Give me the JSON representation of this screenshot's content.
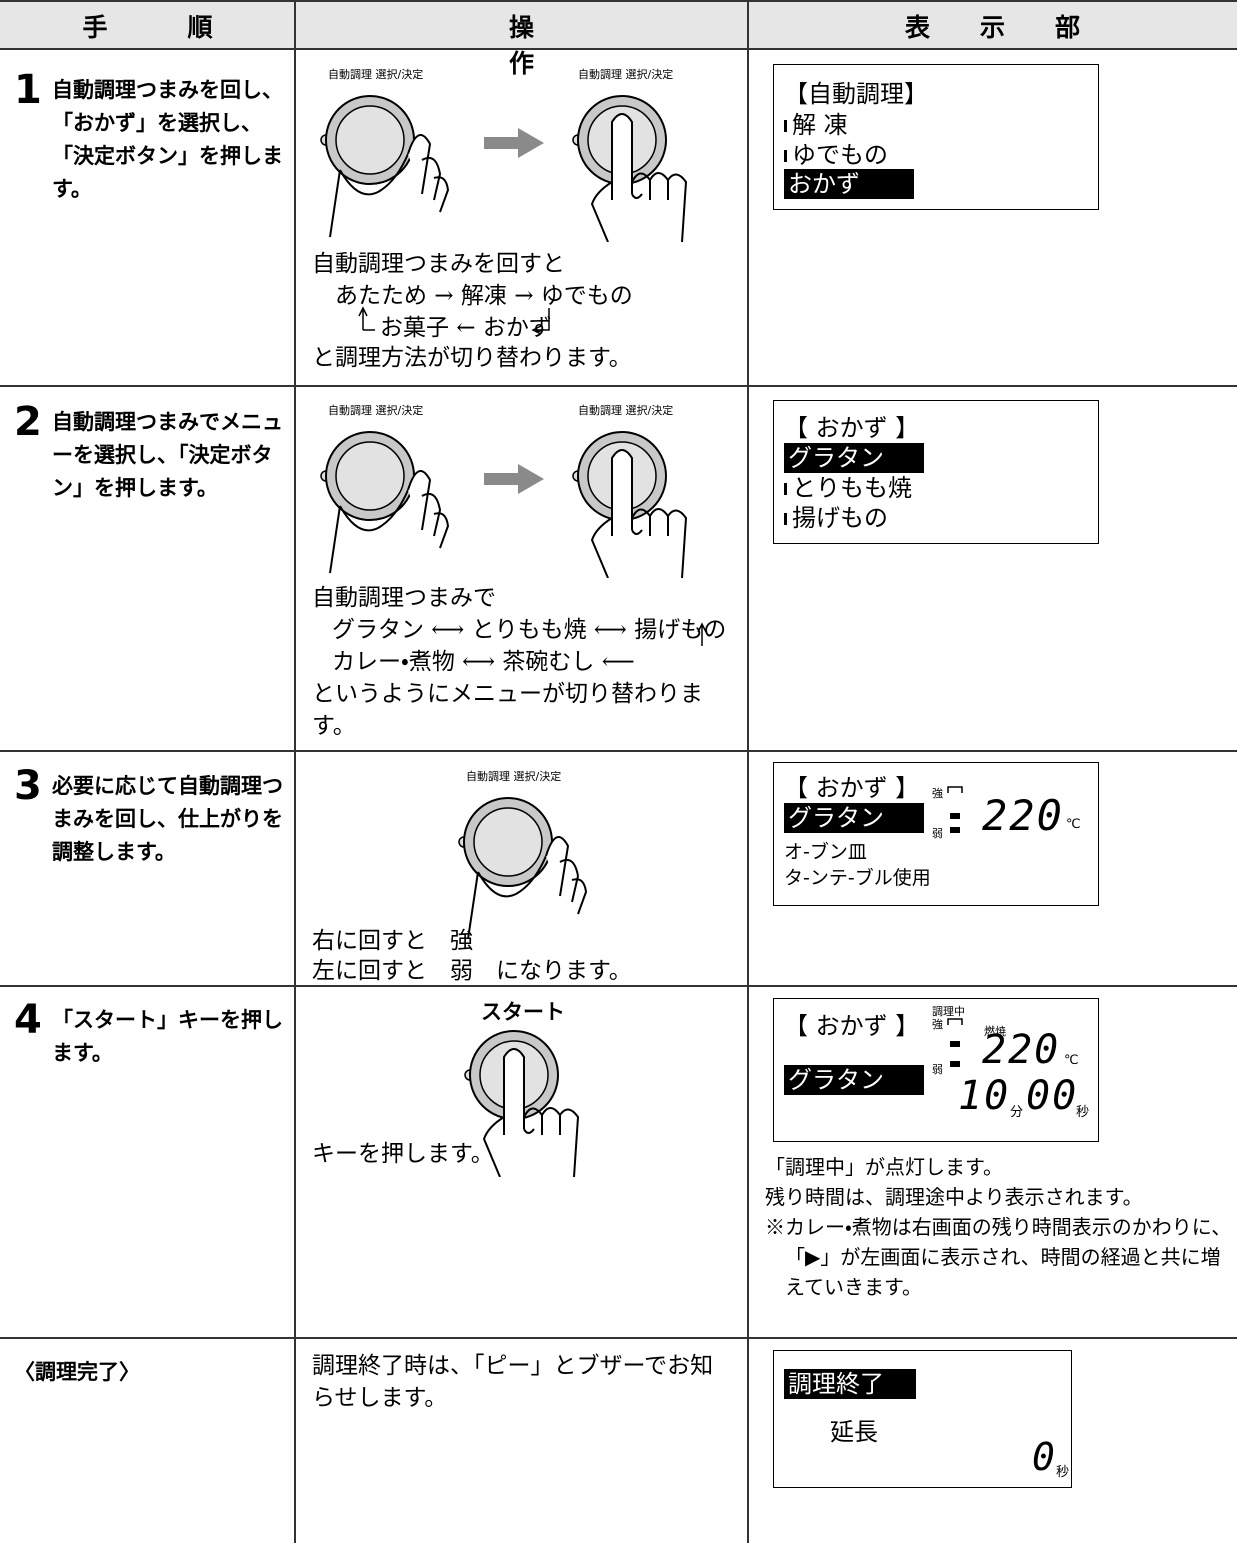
{
  "header": {
    "columns": [
      "手順",
      "操作",
      "表示部"
    ]
  },
  "steps": [
    {
      "number": "1",
      "instruction": "自動調理つまみを回し、「おかず」を選択し、「決定ボタン」を押します。",
      "operation": {
        "dial_labels": [
          "自動調理 選択/決定",
          "自動調理 選択/決定"
        ],
        "caption": [
          "自動調理つまみを回すと",
          "あたため → 解凍 → ゆでもの",
          "お菓子 ← おかず",
          "と調理方法が切り替わります。"
        ]
      },
      "display": {
        "lines": [
          "【自動調理】",
          "解 凍",
          "ゆでもの",
          "おかず"
        ]
      }
    },
    {
      "number": "2",
      "instruction": "自動調理つまみでメニューを選択し、「決定ボタン」を押します。",
      "operation": {
        "dial_labels": [
          "自動調理 選択/決定",
          "自動調理 選択/決定"
        ],
        "caption": [
          "自動調理つまみで",
          "グラタン ⟷ とりもも焼 ⟷ 揚げもの",
          "カレー・煮物 ⟷ 茶碗むし ⟵",
          "というようにメニューが切り替わります。"
        ]
      },
      "display": {
        "lines": [
          "【 おかず 】",
          "グラタン",
          "とりもも焼",
          "揚げもの"
        ]
      }
    },
    {
      "number": "3",
      "instruction": "必要に応じて自動調理つまみを回し、仕上がりを調整します。",
      "operation": {
        "dial_labels": [
          "自動調理 選択/決定"
        ],
        "caption": [
          "右に回すと　強",
          "左に回すと　弱　になります。"
        ]
      },
      "display": {
        "lines": [
          "【 おかず 】",
          "グラタン",
          "オ-ブン皿",
          "タ-ンテ-ブル使用"
        ],
        "indicators": [
          "強",
          "弱"
        ],
        "temperature": "220",
        "temperature_unit": "℃"
      }
    },
    {
      "number": "4",
      "instruction": "「スタート」キーを押します。",
      "operation": {
        "key_label": "スタート",
        "caption": [
          "キーを押します。"
        ]
      },
      "display": {
        "lines": [
          "【 おかず 】",
          "グラタン"
        ],
        "indicators": [
          "調理中",
          "強",
          "燃焼",
          "弱"
        ],
        "temperature": "220",
        "temperature_unit": "℃",
        "minutes": "10",
        "minutes_unit": "分",
        "seconds": "00",
        "seconds_unit": "秒"
      },
      "notes": [
        "「調理中」が点灯します。",
        "残り時間は、調理途中より表示されます。",
        "※カレー・煮物は右画面の残り時間表示のかわりに、「▶」が左画面に表示され、時間の経過と共に増えていきます。"
      ]
    }
  ],
  "completion": {
    "label": "〈調理完了〉",
    "operation": "調理終了時は、「ピー」とブザーでお知らせします。",
    "display": {
      "title": "調理終了",
      "extension": "延長",
      "seconds": "0",
      "seconds_unit": "秒"
    }
  }
}
